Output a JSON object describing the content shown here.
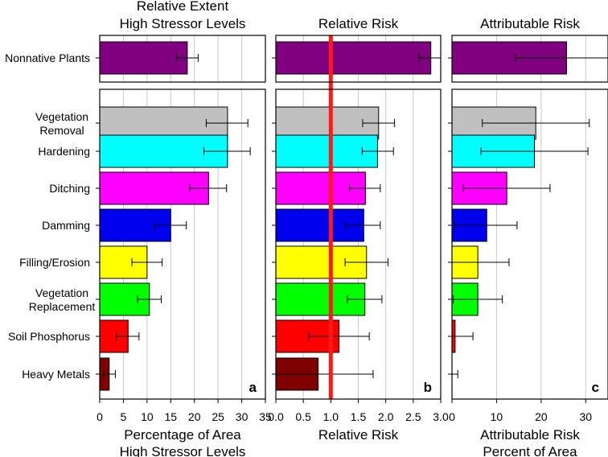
{
  "chart_data": [
    {
      "type": "bar",
      "orientation": "horizontal",
      "panel_letter": "a",
      "title_lines": [
        "Relative Extent",
        "High Stressor Levels"
      ],
      "xlabel_lines": [
        "Percentage of Area",
        "High Stressor Levels"
      ],
      "xlim": [
        0,
        35
      ],
      "ticks": [
        0,
        5,
        10,
        15,
        20,
        25,
        30,
        35
      ],
      "tick_labels": [
        "0",
        "5",
        "10",
        "15",
        "20",
        "25",
        "30",
        "35"
      ],
      "grid": true,
      "top_bars": [
        {
          "category": "Nonnative Plants",
          "value": 18.5,
          "err_low": 16.2,
          "err_high": 20.8
        }
      ],
      "bars": [
        {
          "category": "Vegetation Removal",
          "value": 27.0,
          "err_low": 22.5,
          "err_high": 31.3
        },
        {
          "category": "Hardening",
          "value": 27.0,
          "err_low": 22.0,
          "err_high": 31.8
        },
        {
          "category": "Ditching",
          "value": 23.0,
          "err_low": 19.0,
          "err_high": 26.8
        },
        {
          "category": "Damming",
          "value": 15.0,
          "err_low": 11.5,
          "err_high": 18.3
        },
        {
          "category": "Filling/Erosion",
          "value": 10.0,
          "err_low": 6.8,
          "err_high": 13.2
        },
        {
          "category": "Vegetation Replacement",
          "value": 10.5,
          "err_low": 8.0,
          "err_high": 13.0
        },
        {
          "category": "Soil Phosphorus",
          "value": 6.0,
          "err_low": 3.5,
          "err_high": 8.3
        },
        {
          "category": "Heavy Metals",
          "value": 2.0,
          "err_low": 0.8,
          "err_high": 3.3
        }
      ]
    },
    {
      "type": "bar",
      "orientation": "horizontal",
      "panel_letter": "b",
      "title_lines": [
        "Relative Risk"
      ],
      "xlabel_lines": [
        "Relative Risk"
      ],
      "xlim": [
        0,
        3.0
      ],
      "ticks": [
        0,
        0.5,
        1.0,
        1.5,
        2.0,
        2.5,
        3.0
      ],
      "tick_labels": [
        "0.0",
        "0.5",
        "1.0",
        "1.5",
        "2.0",
        "2.5",
        "3.0"
      ],
      "grid": true,
      "reference_line": {
        "x": 1.0,
        "color": "#ff1a1a"
      },
      "top_bars": [
        {
          "category": "Nonnative Plants",
          "value": 2.82,
          "err_low": 2.6,
          "err_high": 3.1
        }
      ],
      "bars": [
        {
          "category": "Vegetation Removal",
          "value": 1.87,
          "err_low": 1.58,
          "err_high": 2.16
        },
        {
          "category": "Hardening",
          "value": 1.85,
          "err_low": 1.57,
          "err_high": 2.14
        },
        {
          "category": "Ditching",
          "value": 1.63,
          "err_low": 1.34,
          "err_high": 1.9
        },
        {
          "category": "Damming",
          "value": 1.6,
          "err_low": 1.27,
          "err_high": 1.9
        },
        {
          "category": "Filling/Erosion",
          "value": 1.65,
          "err_low": 1.26,
          "err_high": 2.04
        },
        {
          "category": "Vegetation Replacement",
          "value": 1.62,
          "err_low": 1.3,
          "err_high": 1.93
        },
        {
          "category": "Soil Phosphorus",
          "value": 1.15,
          "err_low": 0.6,
          "err_high": 1.7
        },
        {
          "category": "Heavy Metals",
          "value": 0.77,
          "err_low": 0.0,
          "err_high": 1.77
        }
      ]
    },
    {
      "type": "bar",
      "orientation": "horizontal",
      "panel_letter": "c",
      "title_lines": [
        "Attributable Risk"
      ],
      "xlabel_lines": [
        "Attributable Risk",
        "Percent of Area"
      ],
      "xlim": [
        0,
        35
      ],
      "ticks": [
        0,
        10,
        20,
        30
      ],
      "tick_labels": [
        "0",
        "10",
        "20",
        "30"
      ],
      "grid_values": [
        0,
        10,
        20,
        30
      ],
      "grid": true,
      "top_bars": [
        {
          "category": "Nonnative Plants",
          "value": 25.7,
          "err_low": 14.3,
          "err_high": 36.0
        }
      ],
      "bars": [
        {
          "category": "Vegetation Removal",
          "value": 18.8,
          "err_low": 6.8,
          "err_high": 30.8
        },
        {
          "category": "Hardening",
          "value": 18.5,
          "err_low": 6.5,
          "err_high": 30.5
        },
        {
          "category": "Ditching",
          "value": 12.3,
          "err_low": 2.5,
          "err_high": 22.0
        },
        {
          "category": "Damming",
          "value": 7.8,
          "err_low": 0.5,
          "err_high": 14.6
        },
        {
          "category": "Filling/Erosion",
          "value": 5.8,
          "err_low": 0.0,
          "err_high": 12.8
        },
        {
          "category": "Vegetation Replacement",
          "value": 5.8,
          "err_low": 0.3,
          "err_high": 11.3
        },
        {
          "category": "Soil Phosphorus",
          "value": 0.7,
          "err_low": 0.0,
          "err_high": 4.7
        },
        {
          "category": "Heavy Metals",
          "value": 0.0,
          "err_low": 0.0,
          "err_high": 1.3
        }
      ]
    }
  ],
  "category_labels": {
    "top": [
      [
        "Nonnative Plants"
      ]
    ],
    "bottom": [
      [
        "Vegetation",
        "Removal"
      ],
      [
        "Hardening"
      ],
      [
        "Ditching"
      ],
      [
        "Damming"
      ],
      [
        "Filling/Erosion"
      ],
      [
        "Vegetation",
        "Replacement"
      ],
      [
        "Soil Phosphorus"
      ],
      [
        "Heavy Metals"
      ]
    ]
  },
  "colors": {
    "top": [
      "#800080"
    ],
    "bottom": [
      "#c0c0c0",
      "#00ffff",
      "#ff00ff",
      "#0000ee",
      "#ffff00",
      "#00ff00",
      "#ff0000",
      "#800000"
    ],
    "grid": "#c8c8c8",
    "reference_line": "#ff1a1a"
  }
}
